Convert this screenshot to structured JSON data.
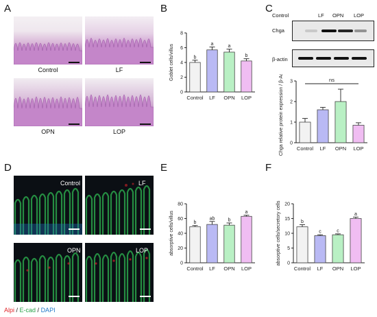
{
  "panels": {
    "a": "A",
    "b": "B",
    "c": "C",
    "d": "D",
    "e": "E",
    "f": "F"
  },
  "micrographs": {
    "he_labels": [
      "Control",
      "LF",
      "OPN",
      "LOP"
    ],
    "if_labels": [
      "Control",
      "LF",
      "OPN",
      "LOP"
    ],
    "if_legend": {
      "alpi": "Alpi",
      "sep1": " / ",
      "ecad": "E-cad",
      "sep2": " / ",
      "dapi": "DAPI"
    },
    "colors": {
      "alpi": "#e0262b",
      "ecad": "#2aa34a",
      "dapi": "#1f78c8"
    }
  },
  "western": {
    "lanes": [
      "Control",
      "LF",
      "OPN",
      "LOP"
    ],
    "rows": [
      "Chga",
      "β-actin"
    ],
    "chga_intensity": [
      0.15,
      1.0,
      0.9,
      0.4
    ],
    "actin_intensity": [
      1.0,
      1.0,
      1.0,
      1.0
    ]
  },
  "bar_colors": [
    "#f2f2f2",
    "#b9b9f4",
    "#b9f0c4",
    "#f0bdf2"
  ],
  "chart_data": [
    {
      "id": "B",
      "type": "bar",
      "categories": [
        "Control",
        "LF",
        "OPN",
        "LOP"
      ],
      "values": [
        4.0,
        5.7,
        5.4,
        4.2
      ],
      "errors": [
        0.3,
        0.4,
        0.4,
        0.3
      ],
      "letters": [
        "b",
        "a",
        "a",
        "b"
      ],
      "ylabel": "Goblet cells/villus",
      "ylim": [
        0,
        8
      ],
      "yticks": [
        "0",
        "2",
        "4",
        "6",
        "8"
      ]
    },
    {
      "id": "C",
      "type": "bar",
      "categories": [
        "Control",
        "LF",
        "OPN",
        "LOP"
      ],
      "values": [
        1.0,
        1.6,
        2.0,
        0.85
      ],
      "errors": [
        0.18,
        0.12,
        0.6,
        0.12
      ],
      "letters": [
        "",
        "",
        "",
        ""
      ],
      "annotation": "ns",
      "ylabel": "Chga relative protein expression / β-Actin",
      "ylim": [
        0,
        3
      ],
      "yticks": [
        "0",
        "1",
        "2",
        "3"
      ]
    },
    {
      "id": "E",
      "type": "bar",
      "categories": [
        "Control",
        "LF",
        "OPN",
        "LOP"
      ],
      "values": [
        49,
        52,
        51,
        63
      ],
      "errors": [
        1.5,
        4,
        3,
        1.5
      ],
      "letters": [
        "b",
        "ab",
        "b",
        "a"
      ],
      "ylabel": "absorptive cells/villus",
      "ylim": [
        0,
        80
      ],
      "yticks": [
        "0",
        "20",
        "40",
        "60",
        "80"
      ]
    },
    {
      "id": "F",
      "type": "bar",
      "categories": [
        "Control",
        "LF",
        "OPN",
        "LOP"
      ],
      "values": [
        12.2,
        9.2,
        9.5,
        15.0
      ],
      "errors": [
        0.7,
        0.3,
        0.3,
        0.5
      ],
      "letters": [
        "b",
        "c",
        "c",
        "a"
      ],
      "ylabel": "absorptive cells/secretory cells",
      "ylim": [
        0,
        20
      ],
      "yticks": [
        "0",
        "5",
        "10",
        "15",
        "20"
      ]
    }
  ]
}
